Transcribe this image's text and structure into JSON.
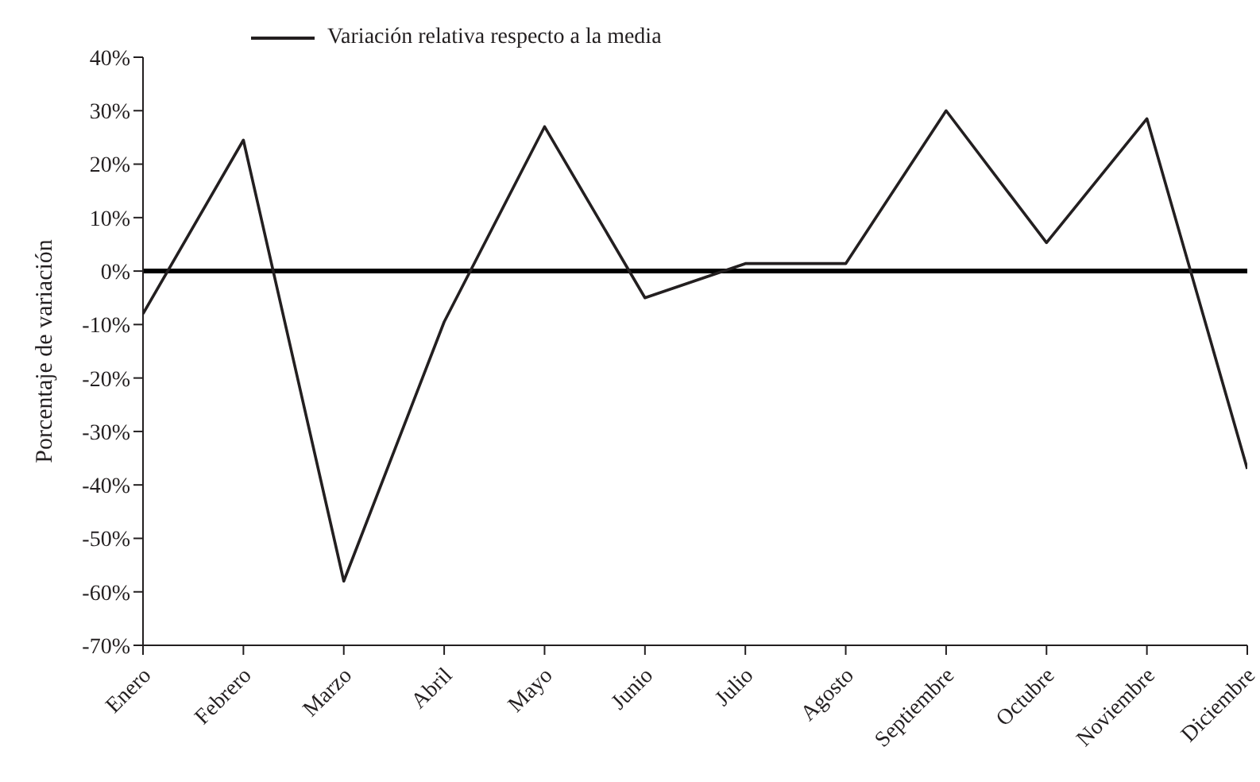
{
  "chart_data": {
    "type": "line",
    "ylabel": "Porcentaje de variación",
    "categories": [
      "Enero",
      "Febrero",
      "Marzo",
      "Abril",
      "Mayo",
      "Junio",
      "Julio",
      "Agosto",
      "Septiembre",
      "Octubre",
      "Noviembre",
      "Diciembre"
    ],
    "series": [
      {
        "name": "Variación relativa respecto a la media",
        "color": "#231f20",
        "values": [
          -8,
          24.5,
          -58,
          -9.5,
          27,
          -5,
          1.4,
          1.4,
          30,
          5.3,
          28.5,
          -37
        ]
      }
    ],
    "ylim": [
      -70,
      40
    ],
    "yticks": [
      {
        "value": -70,
        "label": "-70%"
      },
      {
        "value": -60,
        "label": "-60%"
      },
      {
        "value": -50,
        "label": "-50%"
      },
      {
        "value": -40,
        "label": "-40%"
      },
      {
        "value": -30,
        "label": "-30%"
      },
      {
        "value": -20,
        "label": "-20%"
      },
      {
        "value": -10,
        "label": "-10%"
      },
      {
        "value": 0,
        "label": "0%"
      },
      {
        "value": 10,
        "label": "10%"
      },
      {
        "value": 20,
        "label": "20%"
      },
      {
        "value": 30,
        "label": "30%"
      },
      {
        "value": 40,
        "label": "40%"
      }
    ],
    "ref_lines": [
      {
        "axis": "y",
        "value": 0,
        "color": "#000000"
      }
    ],
    "grid": false,
    "legend": "top left",
    "marker": "none",
    "line_style": "solid"
  }
}
